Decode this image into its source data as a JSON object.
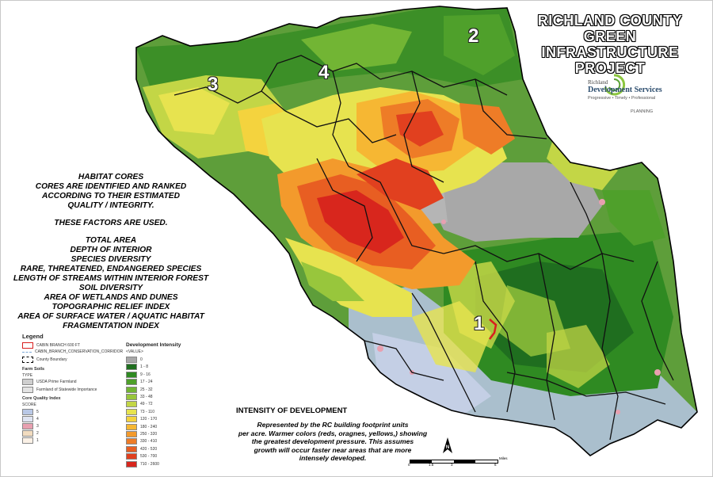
{
  "title": [
    "RICHLAND COUNTY",
    "GREEN INFRASTRUCTURE",
    "PROJECT"
  ],
  "logo": {
    "org": "Richland",
    "brand": "Development Services",
    "tagline": "Progressive • Timely • Professional",
    "dept": "PLANNING"
  },
  "districts": [
    "1",
    "2",
    "3",
    "4"
  ],
  "habitat": {
    "lines_a": [
      "HABITAT CORES",
      "CORES ARE IDENTIFIED AND RANKED",
      "ACCORDING TO THEIR ESTIMATED",
      "QUALITY / INTEGRITY."
    ],
    "line_b": "THESE FACTORS ARE USED.",
    "factors": [
      "TOTAL AREA",
      "DEPTH OF INTERIOR",
      "SPECIES DIVERSITY",
      "RARE, THREATENED, ENDANGERED SPECIES",
      "LENGTH OF STREAMS WITHIN INTERIOR FOREST",
      "SOIL DIVERSITY",
      "AREA OF WETLANDS AND DUNES",
      "TOPOGRAPHIC RELIEF INDEX",
      "AREA OF SURFACE WATER / AQUATIC HABITAT",
      "FRAGMENTATION INDEX"
    ]
  },
  "legend": {
    "title": "Legend",
    "items": [
      {
        "label": "CABIN BRANCH 600 FT",
        "color": "#d81f1f"
      },
      {
        "label": "CABIN_BRANCH_CONSERVATION_CORRIDOR",
        "color": "#7aa7d6"
      },
      {
        "label": "County Boundary",
        "color": "#000000"
      }
    ],
    "farm_soils_title": "Farm Soils",
    "farm_soils_type": "TYPE",
    "farm_soils": [
      {
        "label": "USDA Prime Farmland",
        "color": "#cfcfcf"
      },
      {
        "label": "Farmland of Statewide Importance",
        "color": "#e3e3e3"
      }
    ],
    "core_title": "Core Quality Index",
    "core_score": "SCORE",
    "core": [
      {
        "label": "5",
        "color": "#b9c8e6"
      },
      {
        "label": "4",
        "color": "#dfe4f2"
      },
      {
        "label": "3",
        "color": "#e8a0b0"
      },
      {
        "label": "2",
        "color": "#f2dcc0"
      },
      {
        "label": "1",
        "color": "#fbf1e6"
      }
    ]
  },
  "dev_intensity": {
    "title": "Development Intensity",
    "subtitle": "<VALUE>",
    "classes": [
      {
        "label": "0",
        "color": "#a8a8a8"
      },
      {
        "label": "1 - 8",
        "color": "#1f6e1f"
      },
      {
        "label": "9 - 16",
        "color": "#2f8a22"
      },
      {
        "label": "17 - 24",
        "color": "#4fa02b"
      },
      {
        "label": "25 - 32",
        "color": "#72b534"
      },
      {
        "label": "33 - 48",
        "color": "#98c63c"
      },
      {
        "label": "49 - 72",
        "color": "#c3d646"
      },
      {
        "label": "73 - 110",
        "color": "#e7e34f"
      },
      {
        "label": "120 - 170",
        "color": "#f4d33e"
      },
      {
        "label": "180 - 240",
        "color": "#f6b733"
      },
      {
        "label": "250 - 320",
        "color": "#f39a2c"
      },
      {
        "label": "330 - 410",
        "color": "#ee7c27"
      },
      {
        "label": "420 - 520",
        "color": "#e85e22"
      },
      {
        "label": "530 - 700",
        "color": "#e1401f"
      },
      {
        "label": "710 - 2600",
        "color": "#d8261d"
      }
    ]
  },
  "intensity": {
    "heading": "INTENSITY OF DEVELOPMENT",
    "lines": [
      "Represented by the RC building footprint units",
      "per acre. Warmer colors (reds, oragnes, yellows,) showing",
      "the greatest development pressure.  This assumes",
      "growth will occur faster near areas that are more",
      "intensely developed."
    ]
  },
  "scalebar": {
    "labels": [
      "0",
      "1.5",
      "3",
      "6"
    ],
    "unit": "Miles"
  },
  "north": "N"
}
